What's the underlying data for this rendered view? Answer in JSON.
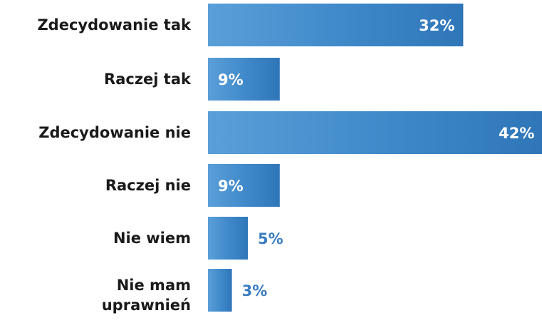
{
  "chart_data": {
    "type": "bar",
    "orientation": "horizontal",
    "categories": [
      [
        "Zdecydowanie tak"
      ],
      [
        "Raczej tak"
      ],
      [
        "Zdecydowanie nie"
      ],
      [
        "Raczej nie"
      ],
      [
        "Nie wiem"
      ],
      [
        "Nie mam",
        "uprawnień"
      ]
    ],
    "values": [
      32,
      9,
      42,
      9,
      5,
      3
    ],
    "value_labels": [
      "32%",
      "9%",
      "42%",
      "9%",
      "5%",
      "3%"
    ],
    "unit": "%",
    "grid": false,
    "legend": "none",
    "colors": {
      "bar": "#3c86c8",
      "bar_light": "#5a9fd8",
      "bar_dark": "#2f76b8",
      "label_inside": "#ffffff",
      "label_outside": "#3a7cc0",
      "category_text": "#1a1a1a"
    }
  }
}
